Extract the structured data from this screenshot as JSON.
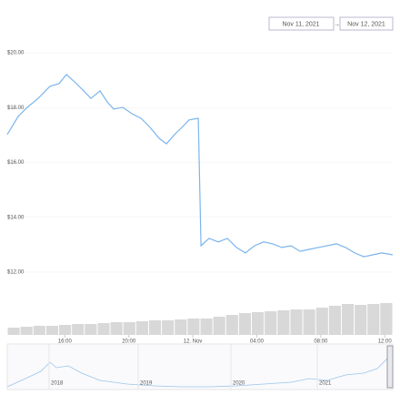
{
  "chart_data": {
    "type": "line",
    "range": {
      "from": "Nov 11, 2021",
      "separator": "→",
      "to": "Nov 12, 2021"
    },
    "x": [
      12.4,
      13.08,
      13.65,
      14.33,
      15.07,
      15.64,
      16.1,
      16.61,
      17.18,
      17.63,
      18.2,
      18.65,
      19.05,
      19.62,
      20.19,
      20.76,
      21.33,
      21.9,
      22.35,
      22.86,
      23.32,
      23.77,
      24.34,
      24.51,
      25.02,
      25.59,
      26.16,
      26.73,
      27.29,
      27.86,
      28.43,
      29.0,
      29.57,
      30.14,
      30.71,
      31.27,
      31.84,
      32.41,
      32.98,
      33.55,
      34.12,
      34.69,
      35.25,
      35.82,
      36.5
    ],
    "series": [
      {
        "color": "#7cb5ec",
        "values": [
          17.02,
          17.68,
          18.01,
          18.34,
          18.78,
          18.88,
          19.21,
          18.94,
          18.61,
          18.34,
          18.61,
          18.21,
          17.95,
          18.01,
          17.78,
          17.61,
          17.28,
          16.88,
          16.68,
          17.02,
          17.28,
          17.55,
          17.61,
          12.96,
          13.23,
          13.1,
          13.23,
          12.9,
          12.7,
          12.96,
          13.1,
          13.03,
          12.9,
          12.96,
          12.76,
          12.83,
          12.9,
          12.96,
          13.03,
          12.9,
          12.7,
          12.56,
          12.63,
          12.7,
          12.63
        ]
      }
    ],
    "xlim": [
      12.4,
      36.5
    ],
    "xticks": [
      {
        "value": 16,
        "label": "16:00"
      },
      {
        "value": 20,
        "label": "20:00"
      },
      {
        "value": 24,
        "label": "12. Nov"
      },
      {
        "value": 28,
        "label": "04:00"
      },
      {
        "value": 32,
        "label": "08:00"
      },
      {
        "value": 36,
        "label": "12:00"
      }
    ],
    "ylim": [
      11.6,
      20.6
    ],
    "yticks": [
      {
        "value": 12,
        "label": "$12.00"
      },
      {
        "value": 14,
        "label": "$14.00"
      },
      {
        "value": 16,
        "label": "$16.00"
      },
      {
        "value": 18,
        "label": "$18.00"
      },
      {
        "value": 20,
        "label": "$20.00"
      }
    ],
    "grid": true,
    "volume": {
      "color": "#d8d8d8",
      "ylim": [
        0,
        50
      ],
      "values": [
        8,
        9,
        10,
        10,
        11,
        12,
        12,
        13,
        14,
        14,
        15,
        16,
        16,
        17,
        18,
        18,
        20,
        22,
        24,
        25,
        26,
        27,
        28,
        28,
        30,
        32,
        34,
        33,
        34,
        35
      ]
    },
    "navigator": {
      "labels": [
        "2018",
        "2019",
        "2020",
        "2021"
      ]
    }
  }
}
